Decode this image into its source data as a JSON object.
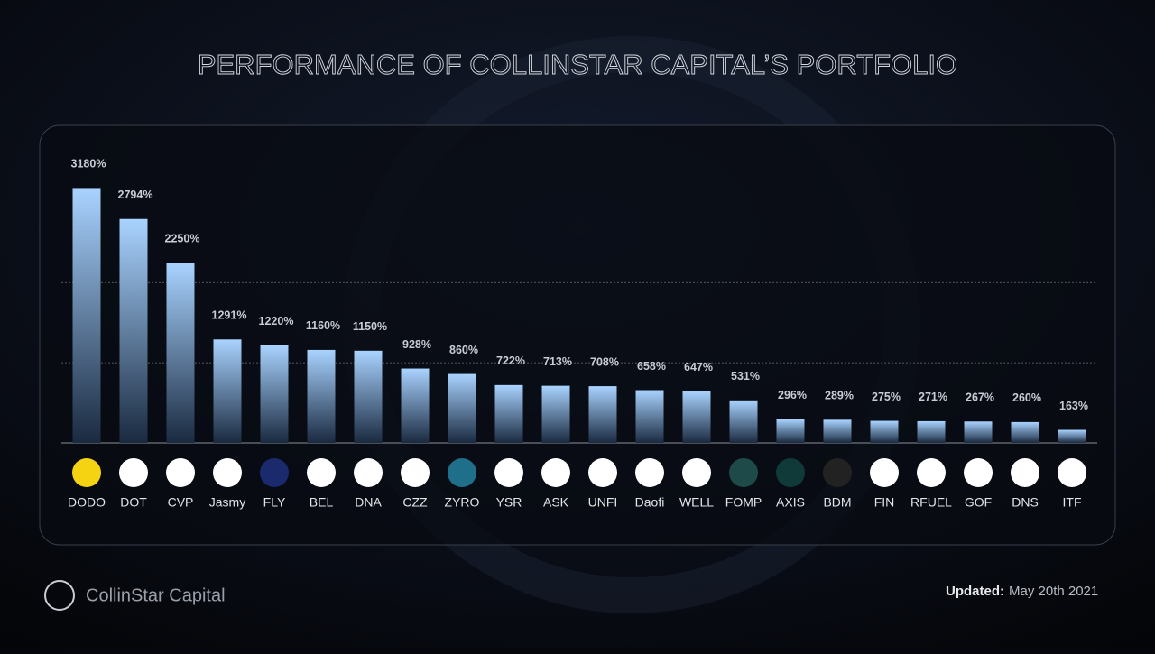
{
  "chart_data": {
    "type": "bar",
    "title": "PERFORMANCE OF COLLINSTAR CAPITAL’S PORTFOLIO",
    "categories": [
      "DODO",
      "DOT",
      "CVP",
      "Jasmy",
      "FLY",
      "BEL",
      "DNA",
      "CZZ",
      "ZYRO",
      "YSR",
      "ASK",
      "UNFI",
      "Daofi",
      "WELL",
      "FOMP",
      "AXIS",
      "BDM",
      "FIN",
      "RFUEL",
      "GOF",
      "DNS",
      "ITF"
    ],
    "values": [
      3180,
      2794,
      2250,
      1291,
      1220,
      1160,
      1150,
      928,
      860,
      722,
      713,
      708,
      658,
      647,
      531,
      296,
      289,
      275,
      271,
      267,
      260,
      163
    ],
    "value_labels": [
      "3180%",
      "2794%",
      "2250%",
      "1291%",
      "1220%",
      "1160%",
      "1150%",
      "928%",
      "860%",
      "722%",
      "713%",
      "708%",
      "658%",
      "647%",
      "531%",
      "296%",
      "289%",
      "275%",
      "271%",
      "267%",
      "260%",
      "163%"
    ],
    "icon_colors": [
      "#f5d312",
      "#ffffff",
      "#ffffff",
      "#ffffff",
      "#1a2a6c",
      "#ffffff",
      "#ffffff",
      "#ffffff",
      "#1f6f8b",
      "#ffffff",
      "#ffffff",
      "#ffffff",
      "#ffffff",
      "#ffffff",
      "#1f4a4a",
      "#103a3a",
      "#222222",
      "#ffffff",
      "#ffffff",
      "#ffffff",
      "#ffffff",
      "#ffffff"
    ],
    "color_top": "#a9d3ff",
    "color_bottom": "#1a2a40",
    "ylim": [
      0,
      3500
    ],
    "yticks": [
      1000,
      2000
    ],
    "ytick_labels": false,
    "grid": true
  },
  "footer": {
    "brand": "CollinStar Capital",
    "updated_label": "Updated:",
    "updated_date": "May 20th 2021"
  }
}
